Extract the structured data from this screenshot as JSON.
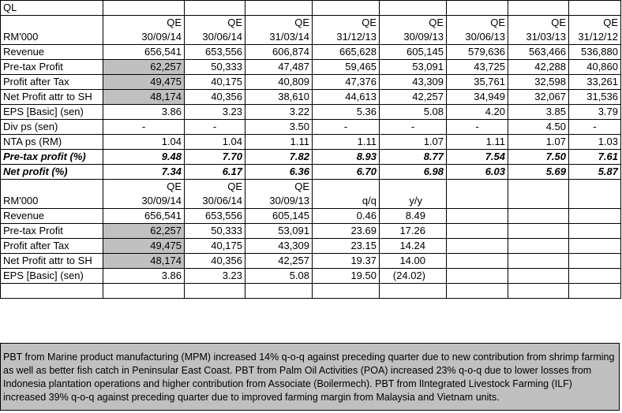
{
  "company": "QL",
  "top": {
    "unit_label": "RM'000",
    "qe_label": "QE",
    "dates": [
      "30/09/14",
      "30/06/14",
      "31/03/14",
      "31/12/13",
      "30/09/13",
      "30/06/13",
      "31/03/13",
      "31/12/12"
    ],
    "rows": [
      {
        "label": "Revenue",
        "values": [
          "656,541",
          "653,556",
          "606,874",
          "665,628",
          "605,145",
          "579,636",
          "563,466",
          "536,880"
        ]
      },
      {
        "label": "Pre-tax Profit",
        "values": [
          "62,257",
          "50,333",
          "47,487",
          "59,465",
          "53,091",
          "43,725",
          "42,288",
          "40,860"
        ]
      },
      {
        "label": "Profit after Tax",
        "values": [
          "49,475",
          "40,175",
          "40,809",
          "47,376",
          "43,309",
          "35,761",
          "32,598",
          "33,261"
        ]
      },
      {
        "label": "Net Profit attr to SH",
        "values": [
          "48,174",
          "40,356",
          "38,610",
          "44,613",
          "42,257",
          "34,949",
          "32,067",
          "31,536"
        ]
      },
      {
        "label": "EPS [Basic] (sen)",
        "values": [
          "3.86",
          "3.23",
          "3.22",
          "5.36",
          "5.08",
          "4.20",
          "3.85",
          "3.79"
        ]
      },
      {
        "label": "Div ps (sen)",
        "values": [
          "-",
          "-",
          "3.50",
          "-",
          "-",
          "-",
          "4.50",
          "-"
        ]
      },
      {
        "label": "NTA ps (RM)",
        "values": [
          "1.04",
          "1.04",
          "1.11",
          "1.11",
          "1.07",
          "1.11",
          "1.07",
          "1.03"
        ]
      },
      {
        "label": "Pre-tax profit (%)",
        "values": [
          "9.48",
          "7.70",
          "7.82",
          "8.93",
          "8.77",
          "7.54",
          "7.50",
          "7.61"
        ]
      },
      {
        "label": "Net profit (%)",
        "values": [
          "7.34",
          "6.17",
          "6.36",
          "6.70",
          "6.98",
          "6.03",
          "5.69",
          "5.87"
        ]
      }
    ]
  },
  "bottom": {
    "unit_label": "RM'000",
    "qe_label": "QE",
    "dates": [
      "30/09/14",
      "30/06/14",
      "30/09/13"
    ],
    "qq_label": "q/q",
    "yy_label": "y/y",
    "rows": [
      {
        "label": "Revenue",
        "values": [
          "656,541",
          "653,556",
          "605,145"
        ],
        "qq": "0.46",
        "yy": "8.49"
      },
      {
        "label": "Pre-tax Profit",
        "values": [
          "62,257",
          "50,333",
          "53,091"
        ],
        "qq": "23.69",
        "yy": "17.26"
      },
      {
        "label": "Profit after Tax",
        "values": [
          "49,475",
          "40,175",
          "43,309"
        ],
        "qq": "23.15",
        "yy": "14.24"
      },
      {
        "label": "Net Profit attr to SH",
        "values": [
          "48,174",
          "40,356",
          "42,257"
        ],
        "qq": "19.37",
        "yy": "14.00"
      },
      {
        "label": "EPS [Basic] (sen)",
        "values": [
          "3.86",
          "3.23",
          "5.08"
        ],
        "qq": "19.50",
        "yy": "(24.02)"
      }
    ]
  },
  "note": "PBT from Marine product manufacturing (MPM) increased 14% q-o-q against preceding quarter due to new contribution from shrimp farming as well as better fish catch in Peninsular East Coast. PBT from Palm Oil Activities (POA) increased 23% q-o-q due to lower losses from Indonesia plantation operations and higher contribution from Associate (Boilermech). PBT from lIntegrated Livestock Farming (ILF) increased 39% q-o-q against preceding quarter due to improved farming margin from Malaysia and Vietnam units.",
  "colors": {
    "highlight": "#c0c0c0",
    "border": "#000000"
  }
}
